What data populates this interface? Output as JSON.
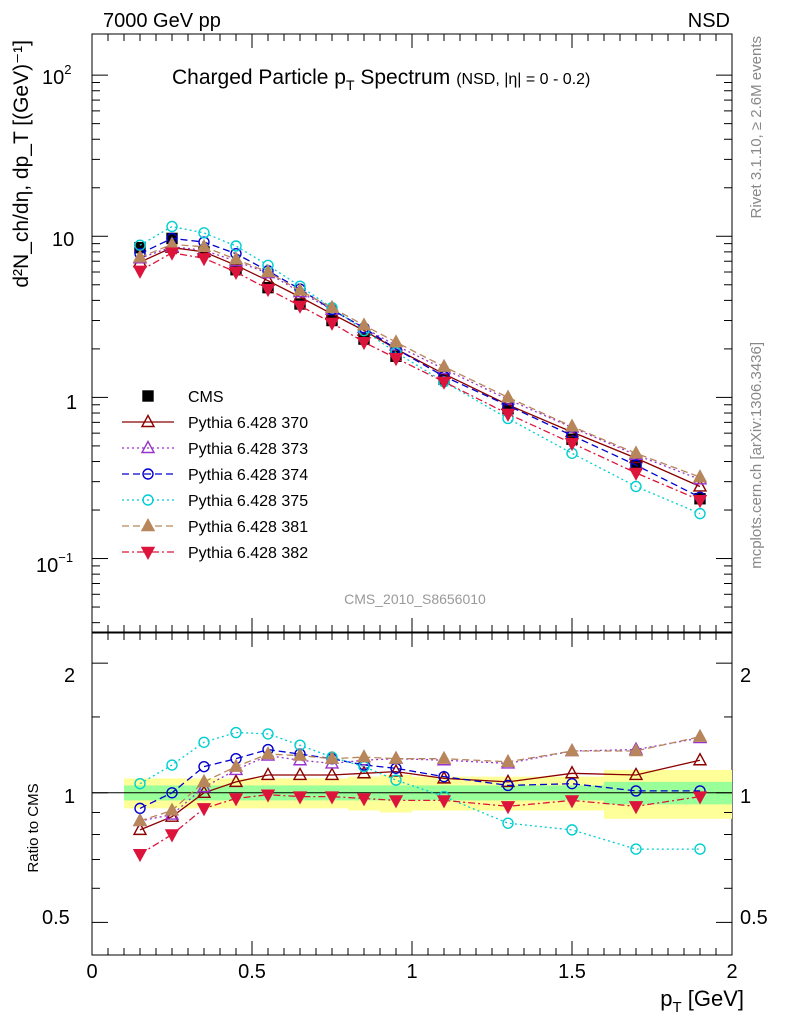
{
  "header": {
    "left": "7000 GeV pp",
    "right": "NSD"
  },
  "title": {
    "main": "Charged Particle p",
    "main_sub": "T",
    "main_tail": " Spectrum",
    "selection": "(NSD, |η| =   0 - 0.2)"
  },
  "side_labels": {
    "top": "Rivet 3.1.10, ≥ 2.6M events",
    "bottom": "mcplots.cern.ch [arXiv:1306.3436]"
  },
  "watermark": "CMS_2010_S8656010",
  "axes": {
    "upper_ylabel": "d²N_ch/dη, dp_T [(GeV)⁻¹]",
    "lower_ylabel": "Ratio to CMS",
    "xlabel_main": "p",
    "xlabel_sub": "T",
    "xlabel_unit": " [GeV]",
    "upper_ytick_labels": {
      "10^2": "10",
      "10^2_exp": "2",
      "10": "10",
      "1": "1",
      "10^-1": "10",
      "10^-1_exp": "−1"
    },
    "lower_ytick_labels": [
      "0.5",
      "1",
      "2"
    ],
    "xtick_labels": [
      "0",
      "0.5",
      "1",
      "1.5",
      "2"
    ]
  },
  "colors": {
    "cms": "#000000",
    "p370": "#8B0000",
    "p373": "#9932CC",
    "p374": "#0000CD",
    "p375": "#00CED1",
    "p381": "#B8865B",
    "p382": "#DC143C",
    "band_inner": "#99ff99",
    "band_outer": "#ffff99"
  },
  "chart_data": [
    {
      "type": "line",
      "name": "spectrum",
      "xlim": [
        0,
        2
      ],
      "ylim": [
        0.035,
        180
      ],
      "log_y": true,
      "x": [
        0.15,
        0.25,
        0.35,
        0.45,
        0.55,
        0.65,
        0.75,
        0.85,
        0.95,
        1.1,
        1.3,
        1.5,
        1.7,
        1.9
      ],
      "series": [
        {
          "name": "CMS",
          "style": "data",
          "values": [
            8.5,
            9.7,
            8.0,
            6.2,
            4.8,
            3.8,
            3.0,
            2.3,
            1.8,
            1.3,
            0.85,
            0.55,
            0.38,
            0.235
          ]
        },
        {
          "name": "Pythia 6.428 370",
          "style": "p370",
          "values": [
            6.9,
            8.5,
            8.0,
            6.6,
            5.3,
            4.2,
            3.3,
            2.6,
            2.0,
            1.4,
            0.9,
            0.61,
            0.42,
            0.28
          ]
        },
        {
          "name": "Pythia 6.428 373",
          "style": "p373",
          "values": [
            7.3,
            8.6,
            8.2,
            7.0,
            5.9,
            4.5,
            3.5,
            2.7,
            2.1,
            1.5,
            0.97,
            0.65,
            0.44,
            0.31
          ]
        },
        {
          "name": "Pythia 6.428 374",
          "style": "p374",
          "values": [
            7.8,
            9.7,
            9.2,
            7.8,
            6.1,
            4.7,
            3.5,
            2.7,
            2.0,
            1.35,
            0.89,
            0.58,
            0.38,
            0.24
          ]
        },
        {
          "name": "Pythia 6.428 375",
          "style": "p375",
          "values": [
            8.8,
            11.5,
            10.5,
            8.7,
            6.6,
            4.9,
            3.6,
            2.6,
            1.9,
            1.25,
            0.74,
            0.45,
            0.28,
            0.19
          ]
        },
        {
          "name": "Pythia 6.428 381",
          "style": "p381",
          "values": [
            7.4,
            8.9,
            8.6,
            7.2,
            6.0,
            4.6,
            3.6,
            2.8,
            2.2,
            1.55,
            1.0,
            0.66,
            0.45,
            0.32
          ]
        },
        {
          "name": "Pythia 6.428 382",
          "style": "p382",
          "values": [
            6.1,
            7.9,
            7.3,
            6.0,
            4.7,
            3.7,
            2.9,
            2.2,
            1.75,
            1.25,
            0.79,
            0.52,
            0.34,
            0.23
          ]
        }
      ]
    },
    {
      "type": "line",
      "name": "ratio",
      "xlim": [
        0,
        2
      ],
      "ylim": [
        0.42,
        2.35
      ],
      "log_y": true,
      "x": [
        0.15,
        0.25,
        0.35,
        0.45,
        0.55,
        0.65,
        0.75,
        0.85,
        0.95,
        1.1,
        1.3,
        1.5,
        1.7,
        1.9
      ],
      "band": {
        "edges": [
          0.1,
          0.2,
          0.3,
          0.4,
          0.5,
          0.6,
          0.7,
          0.8,
          0.9,
          1.0,
          1.2,
          1.4,
          1.6,
          1.8,
          2.0
        ],
        "inner_lo": [
          0.96,
          0.96,
          0.96,
          0.96,
          0.96,
          0.96,
          0.96,
          0.96,
          0.96,
          0.96,
          0.96,
          0.96,
          0.94,
          0.94
        ],
        "inner_hi": [
          1.04,
          1.04,
          1.04,
          1.04,
          1.04,
          1.04,
          1.04,
          1.04,
          1.04,
          1.04,
          1.04,
          1.04,
          1.06,
          1.06
        ],
        "outer_lo": [
          0.92,
          0.92,
          0.92,
          0.92,
          0.92,
          0.92,
          0.92,
          0.91,
          0.9,
          0.91,
          0.91,
          0.91,
          0.87,
          0.87
        ],
        "outer_hi": [
          1.08,
          1.08,
          1.08,
          1.08,
          1.08,
          1.08,
          1.08,
          1.09,
          1.1,
          1.09,
          1.09,
          1.09,
          1.13,
          1.13
        ]
      },
      "series": [
        {
          "name": "Pythia 6.428 370",
          "style": "p370",
          "values": [
            0.82,
            0.88,
            1.0,
            1.06,
            1.1,
            1.1,
            1.1,
            1.11,
            1.12,
            1.08,
            1.06,
            1.11,
            1.1,
            1.19
          ]
        },
        {
          "name": "Pythia 6.428 373",
          "style": "p373",
          "values": [
            0.86,
            0.89,
            1.03,
            1.13,
            1.22,
            1.19,
            1.17,
            1.19,
            1.2,
            1.19,
            1.17,
            1.25,
            1.26,
            1.34
          ]
        },
        {
          "name": "Pythia 6.428 374",
          "style": "p374",
          "values": [
            0.92,
            1.0,
            1.15,
            1.2,
            1.26,
            1.23,
            1.2,
            1.16,
            1.14,
            1.09,
            1.04,
            1.05,
            1.01,
            1.01
          ]
        },
        {
          "name": "Pythia 6.428 375",
          "style": "p375",
          "values": [
            1.05,
            1.16,
            1.31,
            1.38,
            1.37,
            1.29,
            1.21,
            1.15,
            1.07,
            0.98,
            0.85,
            0.82,
            0.74,
            0.74
          ]
        },
        {
          "name": "Pythia 6.428 381",
          "style": "p381",
          "values": [
            0.86,
            0.91,
            1.06,
            1.15,
            1.23,
            1.22,
            1.2,
            1.21,
            1.2,
            1.2,
            1.18,
            1.25,
            1.25,
            1.35
          ]
        },
        {
          "name": "Pythia 6.428 382",
          "style": "p382",
          "values": [
            0.72,
            0.8,
            0.92,
            0.97,
            0.99,
            0.98,
            0.98,
            0.97,
            0.96,
            0.96,
            0.93,
            0.96,
            0.93,
            0.98
          ]
        }
      ]
    }
  ]
}
